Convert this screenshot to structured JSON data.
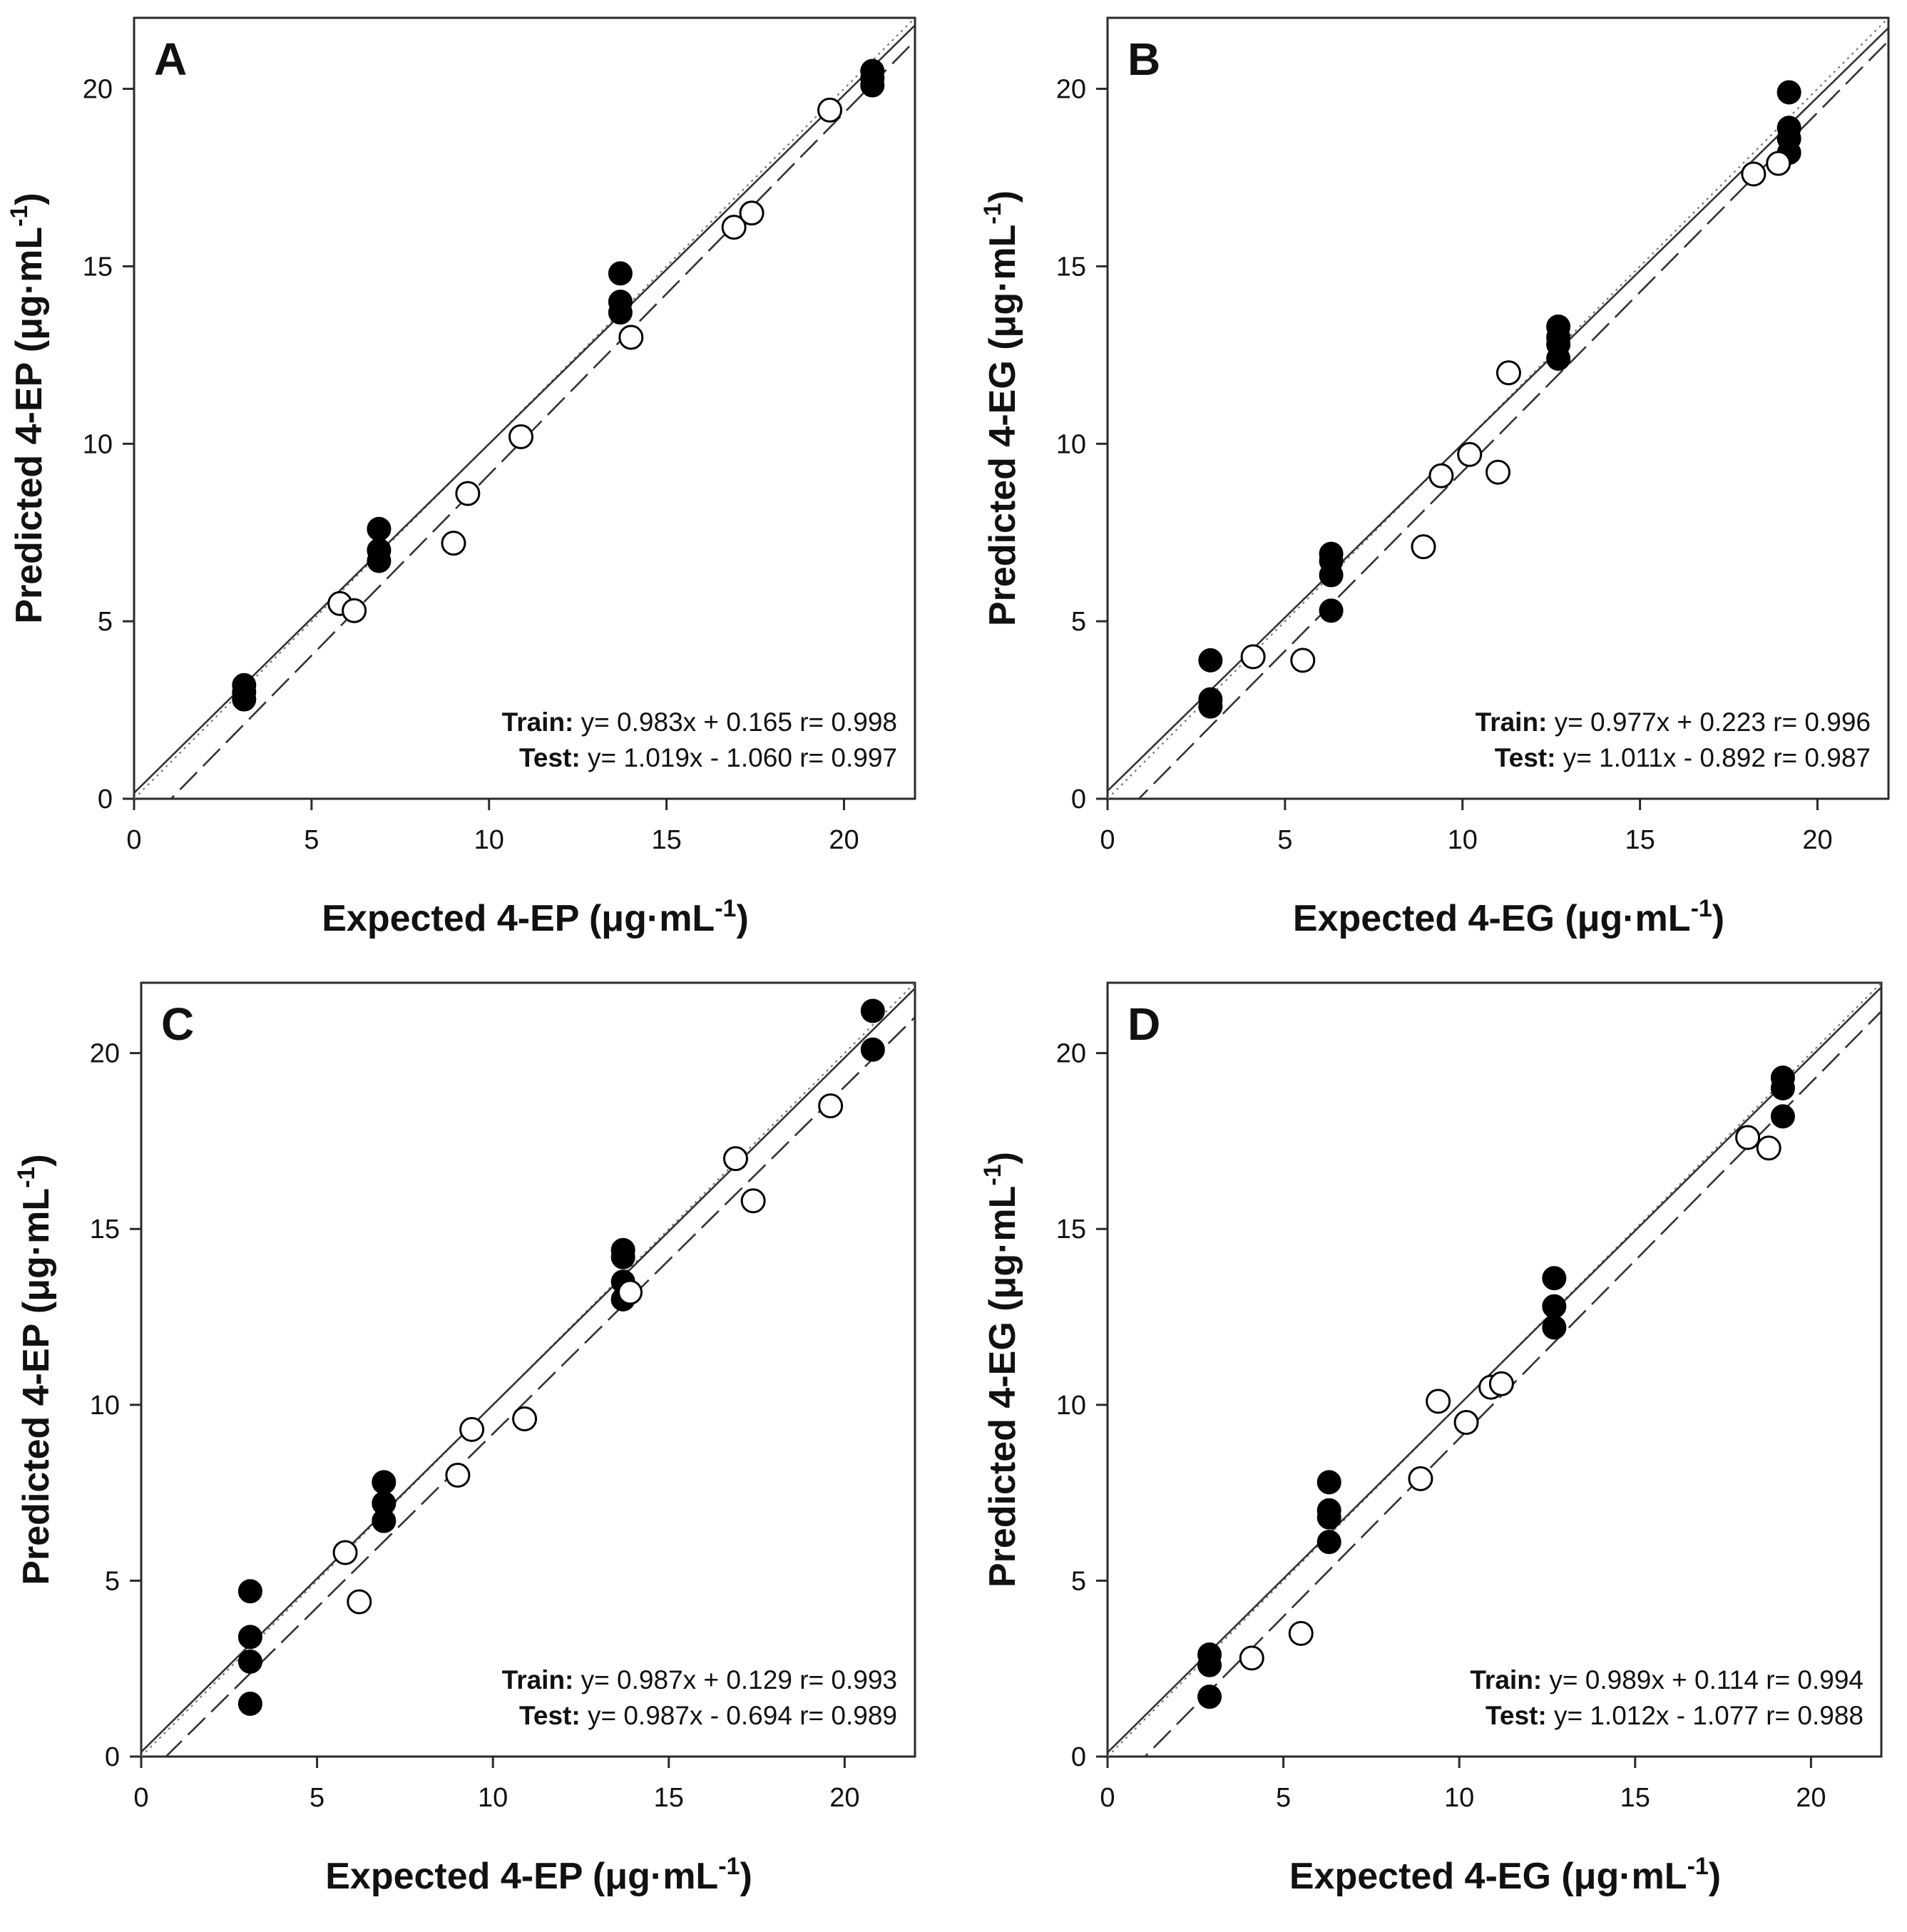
{
  "chart_data": [
    {
      "type": "scatter",
      "panel": "A",
      "xlabel": "Expected 4-EP (μg·mL",
      "ylabel": "Predicted 4-EP (μg·mL",
      "unit_exp": "-1",
      "xlim": [
        0,
        22
      ],
      "ylim": [
        0,
        22
      ],
      "xticks": [
        0,
        5,
        10,
        15,
        20
      ],
      "yticks": [
        0,
        5,
        10,
        15,
        20
      ],
      "equations": {
        "train_label": "Train:",
        "train_eq": "y= 0.983x + 0.165",
        "train_r": "r= 0.998",
        "test_label": "Test:",
        "test_eq": "y= 1.019x - 1.060",
        "test_r": "r= 0.997"
      },
      "fits": {
        "train": [
          0.983,
          0.165
        ],
        "test": [
          1.019,
          -1.06
        ]
      },
      "series": [
        {
          "name": "",
          "role": "train",
          "points": [
            [
              3.1,
              2.8
            ],
            [
              3.1,
              3.0
            ],
            [
              3.1,
              3.2
            ],
            [
              6.9,
              6.7
            ],
            [
              6.9,
              7.0
            ],
            [
              6.9,
              7.6
            ],
            [
              13.7,
              13.7
            ],
            [
              13.7,
              14.0
            ],
            [
              13.7,
              14.8
            ],
            [
              20.8,
              20.1
            ],
            [
              20.8,
              20.3
            ],
            [
              20.8,
              20.5
            ]
          ]
        },
        {
          "name": "",
          "role": "test",
          "points": [
            [
              5.8,
              5.5
            ],
            [
              6.2,
              5.3
            ],
            [
              9.0,
              7.2
            ],
            [
              9.4,
              8.6
            ],
            [
              10.9,
              10.2
            ],
            [
              14.0,
              13.0
            ],
            [
              16.9,
              16.1
            ],
            [
              17.4,
              16.5
            ],
            [
              19.6,
              19.4
            ]
          ]
        }
      ]
    },
    {
      "type": "scatter",
      "panel": "B",
      "xlabel": "Expected 4-EG (μg·mL",
      "ylabel": "Predicted 4-EG (μg·mL",
      "unit_exp": "-1",
      "xlim": [
        0,
        22
      ],
      "ylim": [
        0,
        22
      ],
      "xticks": [
        0,
        5,
        10,
        15,
        20
      ],
      "yticks": [
        0,
        5,
        10,
        15,
        20
      ],
      "equations": {
        "train_label": "Train:",
        "train_eq": "y= 0.977x + 0.223",
        "train_r": "r= 0.996",
        "test_label": "Test:",
        "test_eq": "y= 1.011x - 0.892",
        "test_r": "r= 0.987"
      },
      "fits": {
        "train": [
          0.977,
          0.223
        ],
        "test": [
          1.011,
          -0.892
        ]
      },
      "series": [
        {
          "name": "",
          "role": "train",
          "points": [
            [
              2.9,
              2.6
            ],
            [
              2.9,
              2.8
            ],
            [
              2.9,
              3.9
            ],
            [
              6.3,
              5.3
            ],
            [
              6.3,
              6.3
            ],
            [
              6.3,
              6.7
            ],
            [
              6.3,
              6.9
            ],
            [
              12.7,
              12.4
            ],
            [
              12.7,
              12.8
            ],
            [
              12.7,
              13.0
            ],
            [
              12.7,
              13.3
            ],
            [
              19.2,
              18.2
            ],
            [
              19.2,
              18.6
            ],
            [
              19.2,
              18.9
            ],
            [
              19.2,
              19.9
            ]
          ]
        },
        {
          "name": "",
          "role": "test",
          "points": [
            [
              4.1,
              4.0
            ],
            [
              5.5,
              3.9
            ],
            [
              8.9,
              7.1
            ],
            [
              9.4,
              9.1
            ],
            [
              10.2,
              9.7
            ],
            [
              11.0,
              9.2
            ],
            [
              11.3,
              12.0
            ],
            [
              18.2,
              17.6
            ],
            [
              18.9,
              17.9
            ]
          ]
        }
      ]
    },
    {
      "type": "scatter",
      "panel": "C",
      "xlabel": "Expected 4-EP (μg·mL",
      "ylabel": "Predicted 4-EP (μg·mL",
      "unit_exp": "-1",
      "xlim": [
        0,
        22
      ],
      "ylim": [
        0,
        22
      ],
      "xticks": [
        0,
        5,
        10,
        15,
        20
      ],
      "yticks": [
        0,
        5,
        10,
        15,
        20
      ],
      "equations": {
        "train_label": "Train:",
        "train_eq": "y= 0.987x + 0.129",
        "train_r": "r= 0.993",
        "test_label": "Test:",
        "test_eq": "y= 0.987x - 0.694",
        "test_r": "r= 0.989"
      },
      "fits": {
        "train": [
          0.987,
          0.129
        ],
        "test": [
          0.987,
          -0.694
        ]
      },
      "series": [
        {
          "name": "",
          "role": "train",
          "points": [
            [
              3.1,
              1.5
            ],
            [
              3.1,
              2.7
            ],
            [
              3.1,
              3.4
            ],
            [
              3.1,
              4.7
            ],
            [
              6.9,
              6.7
            ],
            [
              6.9,
              7.2
            ],
            [
              6.9,
              7.8
            ],
            [
              13.7,
              13.0
            ],
            [
              13.7,
              13.5
            ],
            [
              13.7,
              14.2
            ],
            [
              13.7,
              14.4
            ],
            [
              20.8,
              20.1
            ],
            [
              20.8,
              21.2
            ]
          ]
        },
        {
          "name": "",
          "role": "test",
          "points": [
            [
              5.8,
              5.8
            ],
            [
              6.2,
              4.4
            ],
            [
              9.0,
              8.0
            ],
            [
              9.4,
              9.3
            ],
            [
              10.9,
              9.6
            ],
            [
              13.9,
              13.2
            ],
            [
              16.9,
              17.0
            ],
            [
              17.4,
              15.8
            ],
            [
              19.6,
              18.5
            ]
          ]
        }
      ]
    },
    {
      "type": "scatter",
      "panel": "D",
      "xlabel": "Expected 4-EG (μg·mL",
      "ylabel": "Predicted 4-EG (μg·mL",
      "unit_exp": "-1",
      "xlim": [
        0,
        22
      ],
      "ylim": [
        0,
        22
      ],
      "xticks": [
        0,
        5,
        10,
        15,
        20
      ],
      "yticks": [
        0,
        5,
        10,
        15,
        20
      ],
      "equations": {
        "train_label": "Train:",
        "train_eq": "y= 0.989x + 0.114",
        "train_r": "r= 0.994",
        "test_label": "Test:",
        "test_eq": "y= 1.012x - 1.077",
        "test_r": "r= 0.988"
      },
      "fits": {
        "train": [
          0.989,
          0.114
        ],
        "test": [
          1.012,
          -1.077
        ]
      },
      "series": [
        {
          "name": "",
          "role": "train",
          "points": [
            [
              2.9,
              1.7
            ],
            [
              2.9,
              2.6
            ],
            [
              2.9,
              2.9
            ],
            [
              6.3,
              6.1
            ],
            [
              6.3,
              6.8
            ],
            [
              6.3,
              7.0
            ],
            [
              6.3,
              7.8
            ],
            [
              12.7,
              12.2
            ],
            [
              12.7,
              12.8
            ],
            [
              12.7,
              13.6
            ],
            [
              19.2,
              18.2
            ],
            [
              19.2,
              19.0
            ],
            [
              19.2,
              19.3
            ]
          ]
        },
        {
          "name": "",
          "role": "test",
          "points": [
            [
              4.1,
              2.8
            ],
            [
              5.5,
              3.5
            ],
            [
              8.9,
              7.9
            ],
            [
              9.4,
              10.1
            ],
            [
              10.2,
              9.5
            ],
            [
              10.9,
              10.5
            ],
            [
              11.2,
              10.6
            ],
            [
              18.2,
              17.6
            ],
            [
              18.8,
              17.3
            ]
          ]
        }
      ]
    }
  ]
}
